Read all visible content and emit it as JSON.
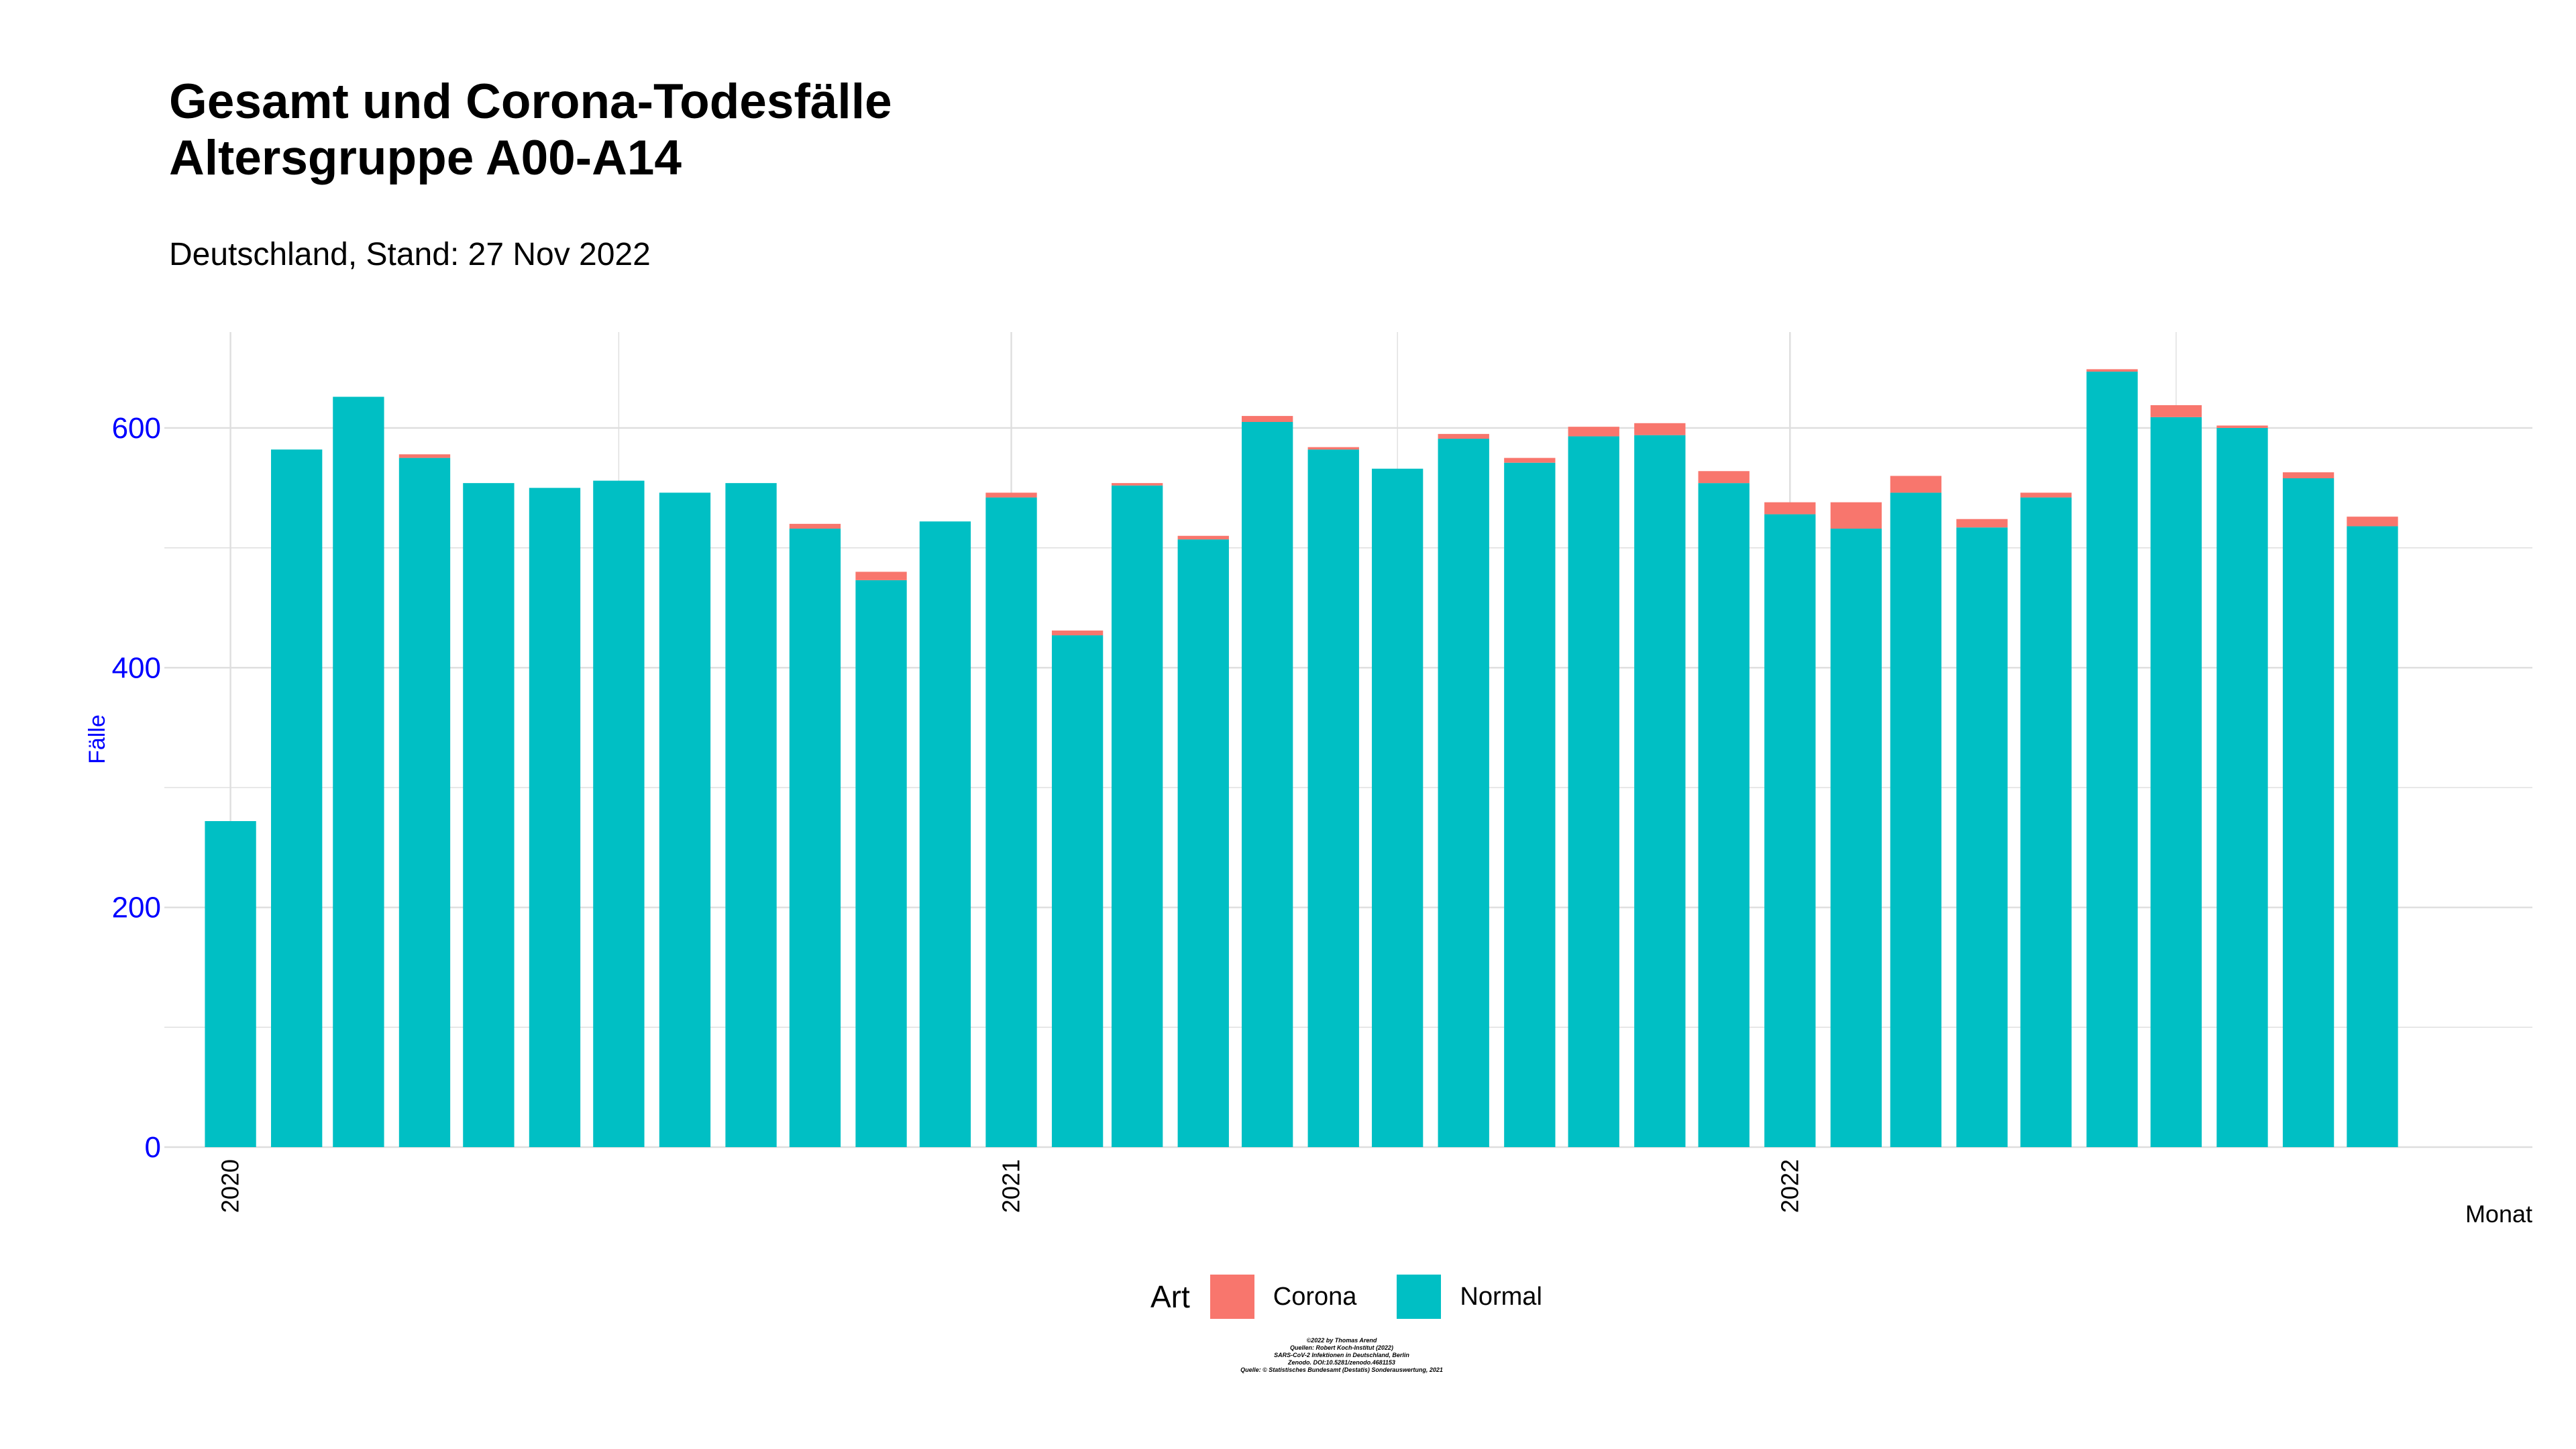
{
  "chart_data": {
    "type": "bar",
    "stacked": true,
    "title_lines": [
      "Gesamt und Corona-Todesfälle",
      "Altersgruppe A00-A14"
    ],
    "subtitle": "Deutschland, Stand: 27 Nov 2022",
    "xlabel": "Monat",
    "ylabel": "Fälle",
    "ylim": [
      0,
      680
    ],
    "y_ticks": [
      0,
      200,
      400,
      600
    ],
    "x_tick_labels": [
      "2020",
      "2021",
      "2022"
    ],
    "x_range": [
      "2019-12-01",
      "2022-12-15"
    ],
    "grid": true,
    "x": [
      "2020-01",
      "2020-02",
      "2020-03",
      "2020-04",
      "2020-05",
      "2020-06",
      "2020-07",
      "2020-08",
      "2020-09",
      "2020-10",
      "2020-11",
      "2020-12",
      "2021-01",
      "2021-02",
      "2021-03",
      "2021-04",
      "2021-05",
      "2021-06",
      "2021-07",
      "2021-08",
      "2021-09",
      "2021-10",
      "2021-11",
      "2021-12",
      "2022-01",
      "2022-02",
      "2022-03",
      "2022-04",
      "2022-05",
      "2022-06",
      "2022-07",
      "2022-08",
      "2022-09",
      "2022-10"
    ],
    "series": [
      {
        "name": "Normal",
        "color": "#00BFC4",
        "values": [
          272,
          582,
          626,
          575,
          554,
          550,
          556,
          546,
          554,
          516,
          473,
          522,
          542,
          427,
          552,
          507,
          605,
          582,
          566,
          591,
          571,
          593,
          594,
          554,
          528,
          516,
          546,
          517,
          542,
          647,
          609,
          600,
          558,
          518
        ]
      },
      {
        "name": "Corona",
        "color": "#F8766D",
        "values": [
          0,
          0,
          0,
          3,
          0,
          0,
          0,
          0,
          0,
          4,
          7,
          0,
          4,
          4,
          2,
          3,
          5,
          2,
          0,
          4,
          4,
          8,
          10,
          10,
          10,
          22,
          14,
          7,
          4,
          2,
          10,
          2,
          5,
          8
        ]
      }
    ],
    "legend": {
      "title": "Art",
      "position": "bottom",
      "entries": [
        "Corona",
        "Normal"
      ]
    }
  },
  "caption_lines": [
    "©2022 by Thomas Arend",
    "Quellen: Robert Koch-Institut (2022)",
    "SARS-CoV-2 Infektionen in Deutschland, Berlin",
    "Zenodo. DOI:10.5281/zenodo.4681153",
    "Quelle: © Statistisches Bundesamt (Destatis) Sonderauswertung, 2021"
  ]
}
